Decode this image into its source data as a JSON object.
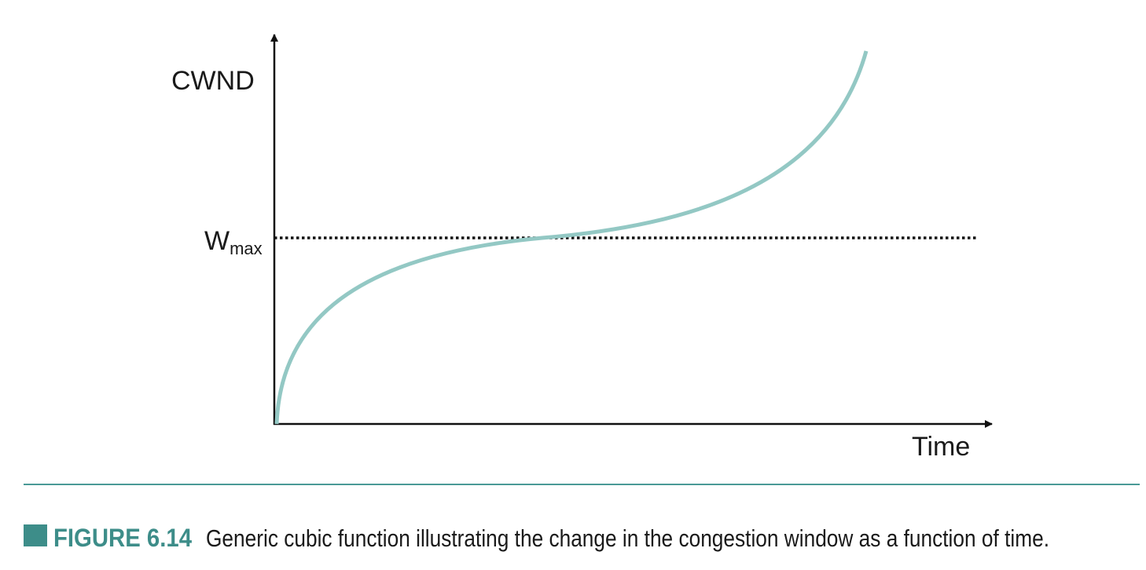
{
  "diagram": {
    "y_axis_label": "CWND",
    "x_axis_label": "Time",
    "level_label": {
      "main": "W",
      "sub": "max"
    }
  },
  "caption": {
    "label": "FIGURE 6.14",
    "text": "Generic cubic function illustrating the change in the congestion window as a function of time."
  }
}
